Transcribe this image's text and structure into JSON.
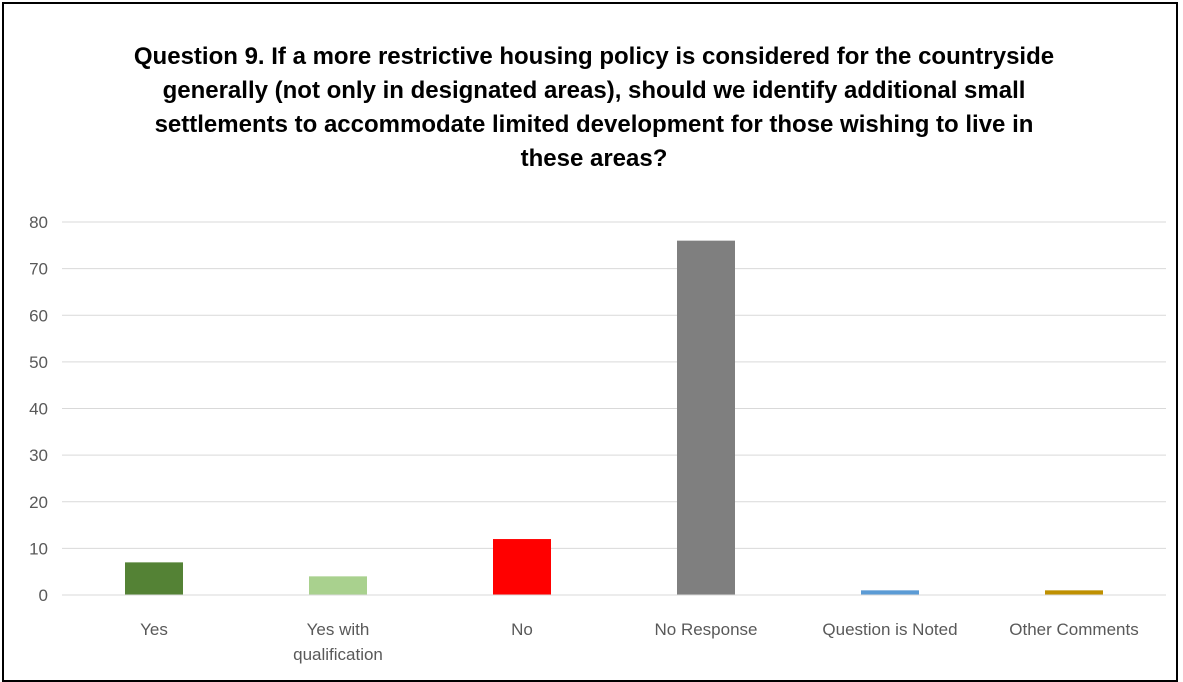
{
  "chart_data": {
    "type": "bar",
    "title": "Question 9.  If a more restrictive housing policy is considered for the countryside generally (not only in designated areas), should we identify additional small settlements to accommodate limited development for those wishing to live in these areas?",
    "categories": [
      [
        "Yes"
      ],
      [
        "Yes with",
        "qualification"
      ],
      [
        "No"
      ],
      [
        "No Response"
      ],
      [
        "Question is Noted"
      ],
      [
        "Other Comments"
      ]
    ],
    "values": [
      7,
      4,
      12,
      76,
      1,
      1
    ],
    "colors": [
      "#548235",
      "#a9d18e",
      "#ff0000",
      "#7f7f7f",
      "#5b9bd5",
      "#bf9000"
    ],
    "ylim": [
      0,
      80
    ],
    "yticks": [
      0,
      10,
      20,
      30,
      40,
      50,
      60,
      70,
      80
    ],
    "grid": true,
    "gridColor": "#d9d9d9"
  }
}
